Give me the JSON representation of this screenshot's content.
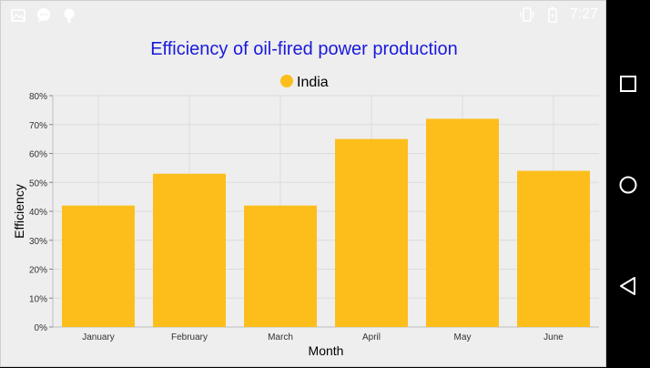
{
  "status_bar": {
    "time": "7:27",
    "left_icons": [
      "image-icon",
      "chat-icon",
      "location-icon"
    ],
    "right_icons": [
      "vibrate-icon",
      "battery-charging-icon"
    ]
  },
  "navigation": {
    "buttons": [
      "recent-apps-icon",
      "home-icon",
      "back-icon"
    ]
  },
  "colors": {
    "title": "#1a1adc",
    "bar": "#fdbe1c",
    "grid": "#dcdcdc",
    "axis_text": "#333333"
  },
  "chart_data": {
    "type": "bar",
    "title": "Efficiency of oil-fired power production",
    "xlabel": "Month",
    "ylabel": "Efficiency",
    "categories": [
      "January",
      "February",
      "March",
      "April",
      "May",
      "June"
    ],
    "series": [
      {
        "name": "India",
        "values": [
          42,
          53,
          42,
          65,
          72,
          54
        ]
      }
    ],
    "ylim": [
      0,
      80
    ],
    "y_ticks": [
      0,
      10,
      20,
      30,
      40,
      50,
      60,
      70,
      80
    ],
    "y_tick_labels": [
      "0%",
      "10%",
      "20%",
      "30%",
      "40%",
      "50%",
      "60%",
      "70%",
      "80%"
    ],
    "legend_position": "top-center",
    "grid": true
  }
}
